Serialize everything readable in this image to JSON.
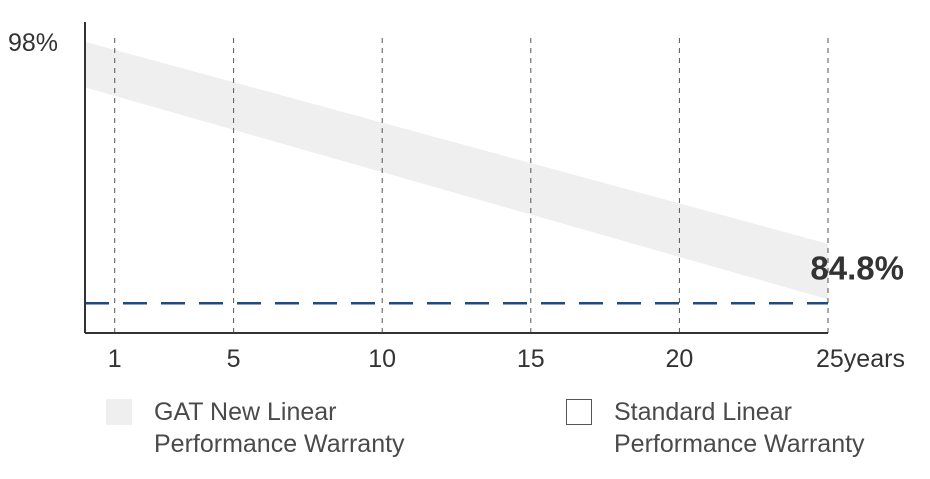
{
  "colors": {
    "band": "#efefef",
    "accent": "#1f4a80",
    "axis": "#333333",
    "grid": "#555555"
  },
  "chart_data": {
    "type": "area",
    "title": "",
    "xlabel": "",
    "ylabel": "",
    "x_axis_unit": "years",
    "x_ticks": [
      "1",
      "5",
      "10",
      "15",
      "20",
      "25"
    ],
    "xlim": [
      0,
      25
    ],
    "ylim": [
      83.3,
      99
    ],
    "y_tick_labels": [
      "98%"
    ],
    "grid": "vertical dashed lines at each year tick",
    "series": [
      {
        "name": "GAT New Linear Performance Warranty",
        "kind": "band",
        "x": [
          0,
          25
        ],
        "upper": [
          98.0,
          87.8
        ],
        "lower": [
          95.7,
          85.0
        ]
      },
      {
        "name": "Standard Linear Performance Warranty",
        "kind": "dashed-line",
        "x": [
          0,
          25
        ],
        "y": [
          84.8,
          84.8
        ]
      }
    ],
    "annotations": [
      {
        "text": "84.8%",
        "x": 25,
        "y": 84.8
      }
    ],
    "legend_position": "bottom"
  },
  "legend": {
    "gat": {
      "line1": "GAT New Linear",
      "line2": "Performance Warranty"
    },
    "standard": {
      "line1": "Standard Linear",
      "line2": "Performance Warranty"
    }
  }
}
